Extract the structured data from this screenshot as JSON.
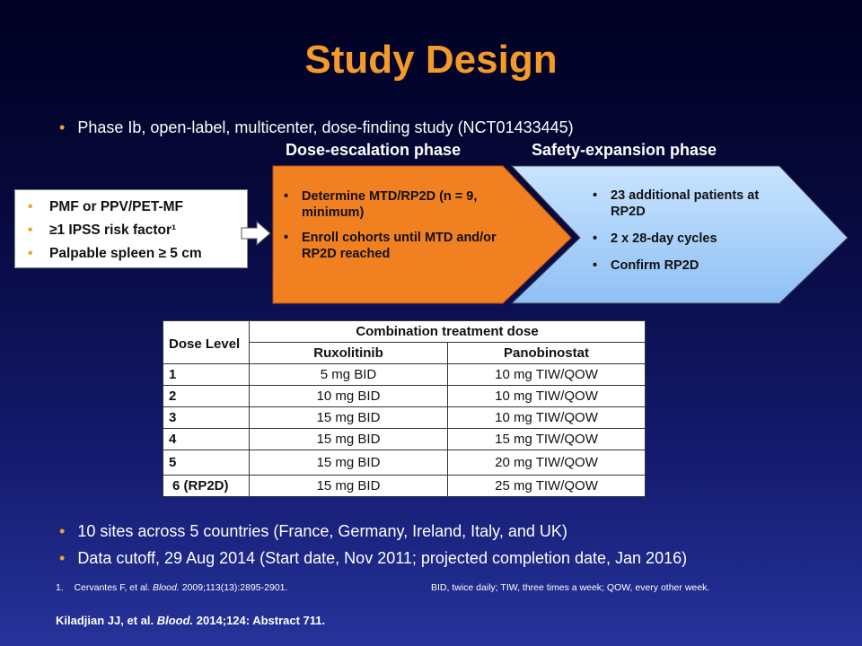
{
  "title": "Study Design",
  "intro_bullet": "Phase Ib, open-label, multicenter, dose-finding study (NCT01433445)",
  "phases": {
    "escalation_label": "Dose-escalation phase",
    "expansion_label": "Safety-expansion phase",
    "escalation_items": [
      "Determine MTD/RP2D (n = 9, minimum)",
      "Enroll cohorts until MTD and/or RP2D reached"
    ],
    "expansion_items": [
      "23 additional patients at RP2D",
      "2 x 28-day cycles",
      "Confirm RP2D"
    ]
  },
  "criteria": [
    "PMF or PPV/PET-MF",
    "≥1 IPSS risk factor¹",
    "Palpable spleen ≥ 5 cm"
  ],
  "table": {
    "level_header": "Dose Level",
    "combo_header": "Combination treatment dose",
    "drug1": "Ruxolitinib",
    "drug2": "Panobinostat",
    "rows": [
      {
        "level": "1",
        "rux": "5 mg BID",
        "pano": "10 mg TIW/QOW"
      },
      {
        "level": "2",
        "rux": "10 mg BID",
        "pano": "10 mg TIW/QOW"
      },
      {
        "level": "3",
        "rux": "15 mg BID",
        "pano": "10 mg TIW/QOW"
      },
      {
        "level": "4",
        "rux": "15 mg BID",
        "pano": "15 mg TIW/QOW"
      },
      {
        "level": "5",
        "rux": "15 mg BID",
        "pano": "20 mg TIW/QOW"
      },
      {
        "level": "6 (RP2D)",
        "rux": "15 mg BID",
        "pano": "25 mg TIW/QOW"
      }
    ]
  },
  "bottom_bullets": [
    "10 sites across 5 countries (France, Germany, Ireland, Italy, and UK)",
    "Data cutoff, 29 Aug 2014 (Start date, Nov 2011; projected completion date, Jan 2016)"
  ],
  "footnote": {
    "number": "1.",
    "authors": "Cervantes F, et al.",
    "journal": "Blood.",
    "details": "2009;113(13):2895-2901.",
    "abbreviations": "BID, twice daily; TIW, three times a week; QOW, every other week."
  },
  "citation": {
    "authors": "Kiladjian JJ, et al.",
    "journal": "Blood.",
    "details": "2014;124: Abstract 711."
  },
  "colors": {
    "title": "#f39a2b",
    "bullet": "#f0a030",
    "escalation_fill": "#f08020",
    "expansion_fill": "#a9d2ff"
  }
}
